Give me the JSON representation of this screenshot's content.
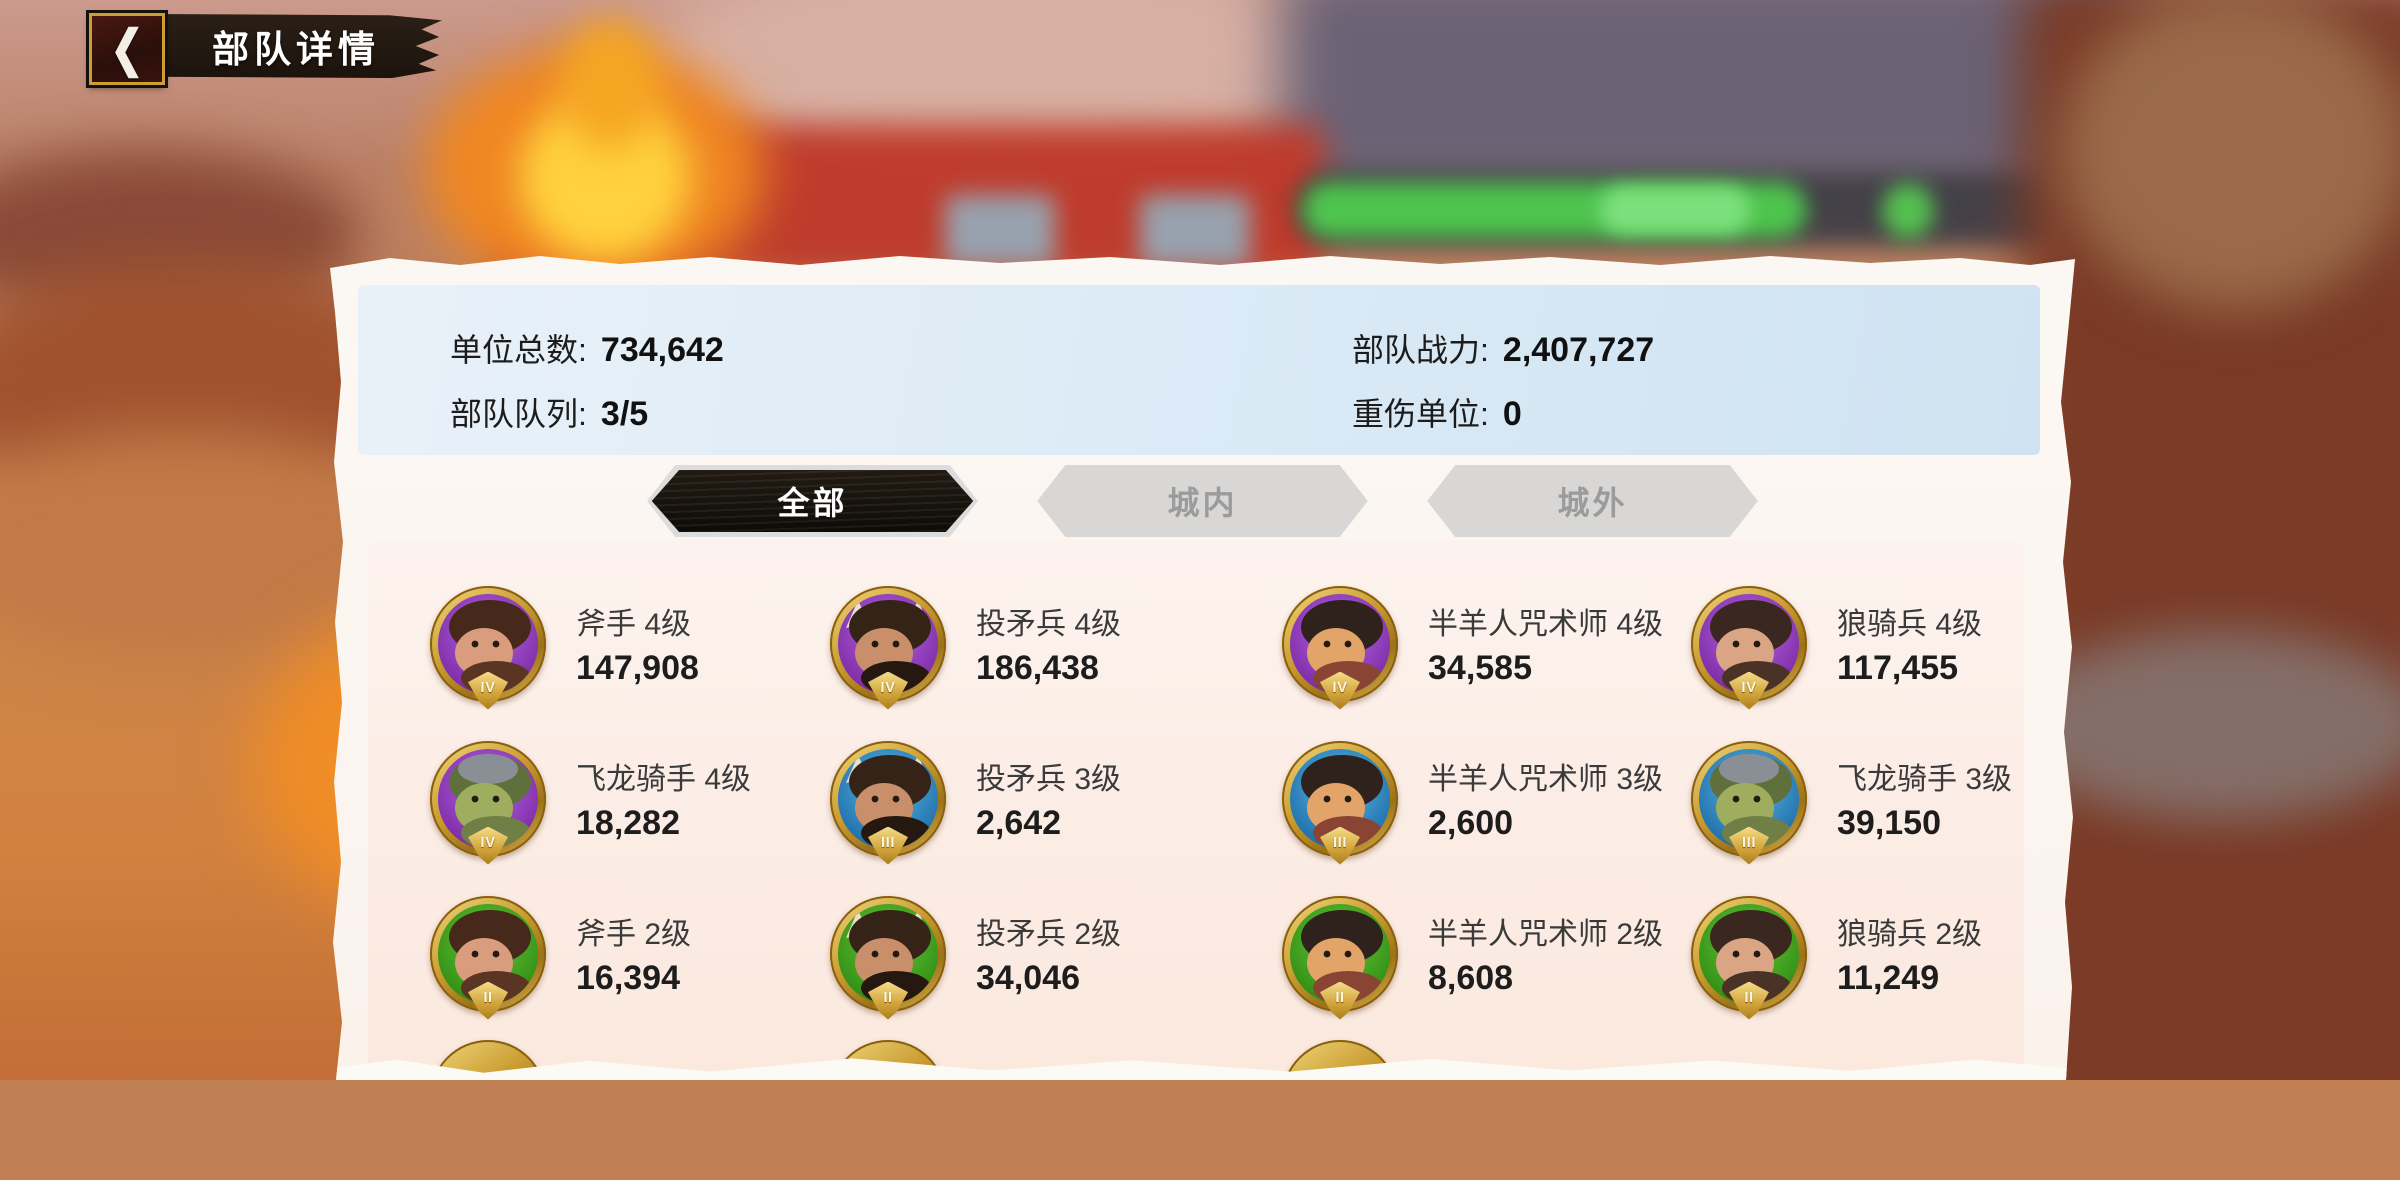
{
  "header": {
    "title": "部队详情"
  },
  "stats": {
    "left": [
      {
        "label": "单位总数:",
        "value": "734,642"
      },
      {
        "label": "部队队列:",
        "value": "3/5"
      }
    ],
    "right": [
      {
        "label": "部队战力:",
        "value": "2,407,727"
      },
      {
        "label": "重伤单位:",
        "value": "0"
      }
    ]
  },
  "tabs": [
    {
      "label": "全部",
      "active": true
    },
    {
      "label": "城内",
      "active": false
    },
    {
      "label": "城外",
      "active": false
    }
  ],
  "units": [
    {
      "name": "斧手 4级",
      "count": "147,908",
      "tier": "IV",
      "level": 4,
      "type": "axeman"
    },
    {
      "name": "投矛兵 4级",
      "count": "186,438",
      "tier": "IV",
      "level": 4,
      "type": "spearman"
    },
    {
      "name": "半羊人咒术师 4级",
      "count": "34,585",
      "tier": "IV",
      "level": 4,
      "type": "satyr"
    },
    {
      "name": "狼骑兵 4级",
      "count": "117,455",
      "tier": "IV",
      "level": 4,
      "type": "wolfrider"
    },
    {
      "name": "飞龙骑手 4级",
      "count": "18,282",
      "tier": "IV",
      "level": 4,
      "type": "wyvernrider"
    },
    {
      "name": "投矛兵 3级",
      "count": "2,642",
      "tier": "III",
      "level": 3,
      "type": "spearman"
    },
    {
      "name": "半羊人咒术师 3级",
      "count": "2,600",
      "tier": "III",
      "level": 3,
      "type": "satyr"
    },
    {
      "name": "飞龙骑手 3级",
      "count": "39,150",
      "tier": "III",
      "level": 3,
      "type": "wyvernrider"
    },
    {
      "name": "斧手 2级",
      "count": "16,394",
      "tier": "II",
      "level": 2,
      "type": "axeman"
    },
    {
      "name": "投矛兵 2级",
      "count": "34,046",
      "tier": "II",
      "level": 2,
      "type": "spearman"
    },
    {
      "name": "半羊人咒术师 2级",
      "count": "8,608",
      "tier": "II",
      "level": 2,
      "type": "satyr"
    },
    {
      "name": "狼骑兵 2级",
      "count": "11,249",
      "tier": "II",
      "level": 2,
      "type": "wolfrider"
    }
  ],
  "partial_next_row": {
    "visible_icon_count": 3
  },
  "portraits": {
    "axeman": {
      "hair": "#47291b",
      "face": "#d99c7c",
      "body": "#5a3524",
      "horns": false,
      "helmet": false
    },
    "spearman": {
      "hair": "#352318",
      "face": "#c98e6a",
      "body": "#241810",
      "horns": true,
      "helmet": false
    },
    "satyr": {
      "hair": "#2f211b",
      "face": "#e2a468",
      "body": "#8a4434",
      "horns": false,
      "helmet": false
    },
    "wolfrider": {
      "hair": "#3a2820",
      "face": "#d9a584",
      "body": "#4a3226",
      "horns": false,
      "helmet": false
    },
    "wyvernrider": {
      "hair": "#5f703c",
      "face": "#9fae5e",
      "body": "#6f7f46",
      "horns": false,
      "helmet": true
    }
  },
  "colors": {
    "tier_4_dark": "#7d2ca6",
    "tier_4_light": "#b765e2",
    "tier_3_dark": "#1f6fa8",
    "tier_3_light": "#5cb8e8",
    "tier_2_dark": "#2f8f14",
    "tier_2_light": "#6cc43a",
    "gold": "#c9992f",
    "active_tab": "#18130e",
    "inactive_tab": "#d8d7d5",
    "stat_band_blue": "#d9e8f5",
    "content_pink": "#fbeee7",
    "health_bar_green": "#4ec44e"
  }
}
